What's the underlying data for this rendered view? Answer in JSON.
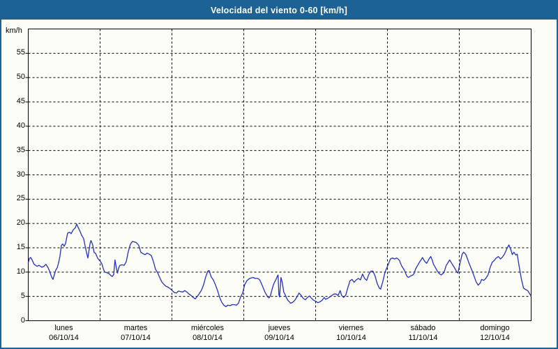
{
  "window": {
    "title": "Velocidad del viento 0-60 [km/h]"
  },
  "colors": {
    "frame_blue": "#1d6295",
    "titlebar_text": "#ffffff",
    "panel_background": "#fbfdf6",
    "plot_frame": "#000000",
    "gridline": "#000000",
    "series_line": "#2330c0",
    "label_text": "#000000"
  },
  "chart_data": {
    "type": "line",
    "title": "Velocidad del viento 0-60 [km/h]",
    "ylabel": "km/h",
    "xlabel": "",
    "ylim": [
      0,
      60
    ],
    "xlim": [
      0,
      7
    ],
    "yticks": [
      0,
      5,
      10,
      15,
      20,
      25,
      30,
      35,
      40,
      45,
      50,
      55
    ],
    "grid": "dashed-both-axes",
    "legend": "none",
    "days": [
      {
        "name": "lunes",
        "date": "06/10/14"
      },
      {
        "name": "martes",
        "date": "07/10/14"
      },
      {
        "name": "miércoles",
        "date": "08/10/14"
      },
      {
        "name": "jueves",
        "date": "09/10/14"
      },
      {
        "name": "viernes",
        "date": "10/10/14"
      },
      {
        "name": "sábado",
        "date": "11/10/14"
      },
      {
        "name": "domingo",
        "date": "12/10/14"
      }
    ],
    "series": [
      {
        "name": "wind-speed-kmh",
        "x_unit": "days-since-monday-06/10/14",
        "points": [
          [
            0,
            11.9
          ],
          [
            0.015,
            12.8
          ],
          [
            0.034,
            13
          ],
          [
            0.053,
            12.5
          ],
          [
            0.082,
            11.6
          ],
          [
            0.121,
            11.2
          ],
          [
            0.15,
            11.4
          ],
          [
            0.189,
            11
          ],
          [
            0.218,
            11.2
          ],
          [
            0.247,
            11.6
          ],
          [
            0.277,
            10.9
          ],
          [
            0.296,
            10.2
          ],
          [
            0.325,
            9
          ],
          [
            0.344,
            8.5
          ],
          [
            0.364,
            9.5
          ],
          [
            0.383,
            10.4
          ],
          [
            0.403,
            10.9
          ],
          [
            0.422,
            11.9
          ],
          [
            0.441,
            13.2
          ],
          [
            0.461,
            15.5
          ],
          [
            0.48,
            15.8
          ],
          [
            0.5,
            15.3
          ],
          [
            0.519,
            15.9
          ],
          [
            0.548,
            18
          ],
          [
            0.577,
            18.2
          ],
          [
            0.597,
            17.9
          ],
          [
            0.626,
            18.7
          ],
          [
            0.655,
            19.1
          ],
          [
            0.674,
            19.9
          ],
          [
            0.694,
            19.2
          ],
          [
            0.723,
            18.3
          ],
          [
            0.742,
            17.6
          ],
          [
            0.771,
            16.9
          ],
          [
            0.791,
            15.4
          ],
          [
            0.81,
            14.1
          ],
          [
            0.83,
            12.9
          ],
          [
            0.859,
            15.8
          ],
          [
            0.873,
            16.5
          ],
          [
            0.897,
            15.6
          ],
          [
            0.917,
            14
          ],
          [
            0.936,
            13.9
          ],
          [
            0.965,
            12.9
          ],
          [
            0.985,
            12.5
          ],
          [
            1.004,
            12.2
          ],
          [
            1.024,
            11.7
          ],
          [
            1.043,
            10.8
          ],
          [
            1.062,
            10
          ],
          [
            1.091,
            9.9
          ],
          [
            1.121,
            9.7
          ],
          [
            1.15,
            9.3
          ],
          [
            1.169,
            9.1
          ],
          [
            1.189,
            9.5
          ],
          [
            1.208,
            12.5
          ],
          [
            1.227,
            10.8
          ],
          [
            1.242,
            9.8
          ],
          [
            1.257,
            10.8
          ],
          [
            1.276,
            11.4
          ],
          [
            1.305,
            11.5
          ],
          [
            1.334,
            11.4
          ],
          [
            1.363,
            12.1
          ],
          [
            1.392,
            14.2
          ],
          [
            1.421,
            15.7
          ],
          [
            1.45,
            16.3
          ],
          [
            1.48,
            16.2
          ],
          [
            1.509,
            16
          ],
          [
            1.538,
            15.5
          ],
          [
            1.567,
            14.1
          ],
          [
            1.596,
            13.8
          ],
          [
            1.625,
            13.6
          ],
          [
            1.654,
            13.9
          ],
          [
            1.683,
            13.7
          ],
          [
            1.713,
            13.4
          ],
          [
            1.742,
            12.2
          ],
          [
            1.771,
            10.6
          ],
          [
            1.8,
            9.9
          ],
          [
            1.829,
            8.9
          ],
          [
            1.858,
            8
          ],
          [
            1.887,
            7.5
          ],
          [
            1.916,
            7.1
          ],
          [
            1.946,
            6.9
          ],
          [
            1.975,
            6.6
          ],
          [
            2.004,
            6.2
          ],
          [
            2.033,
            5.8
          ],
          [
            2.062,
            5.7
          ],
          [
            2.091,
            6.1
          ],
          [
            2.12,
            6
          ],
          [
            2.149,
            5.9
          ],
          [
            2.179,
            6.2
          ],
          [
            2.208,
            5.9
          ],
          [
            2.237,
            5.5
          ],
          [
            2.266,
            5.2
          ],
          [
            2.295,
            4.8
          ],
          [
            2.324,
            4.5
          ],
          [
            2.353,
            5
          ],
          [
            2.382,
            5.6
          ],
          [
            2.412,
            6.3
          ],
          [
            2.441,
            7.4
          ],
          [
            2.47,
            9
          ],
          [
            2.499,
            10.2
          ],
          [
            2.518,
            10.3
          ],
          [
            2.547,
            9
          ],
          [
            2.576,
            8.4
          ],
          [
            2.605,
            7.4
          ],
          [
            2.635,
            6.2
          ],
          [
            2.664,
            4.8
          ],
          [
            2.693,
            3.8
          ],
          [
            2.722,
            3.2
          ],
          [
            2.751,
            2.9
          ],
          [
            2.78,
            3.2
          ],
          [
            2.809,
            3.1
          ],
          [
            2.838,
            3.3
          ],
          [
            2.867,
            3.3
          ],
          [
            2.897,
            3.2
          ],
          [
            2.926,
            3.6
          ],
          [
            2.955,
            4.9
          ],
          [
            2.984,
            5.7
          ],
          [
            3.013,
            7.4
          ],
          [
            3.042,
            8.2
          ],
          [
            3.071,
            8.6
          ],
          [
            3.1,
            8.8
          ],
          [
            3.129,
            8.9
          ],
          [
            3.159,
            8.7
          ],
          [
            3.188,
            8.7
          ],
          [
            3.207,
            8.6
          ],
          [
            3.226,
            8.3
          ],
          [
            3.255,
            7.3
          ],
          [
            3.275,
            6.6
          ],
          [
            3.294,
            5.9
          ],
          [
            3.314,
            5.4
          ],
          [
            3.333,
            4.9
          ],
          [
            3.352,
            4.7
          ],
          [
            3.372,
            5.2
          ],
          [
            3.391,
            6.3
          ],
          [
            3.411,
            7.3
          ],
          [
            3.43,
            8
          ],
          [
            3.449,
            8.5
          ],
          [
            3.469,
            9.2
          ],
          [
            3.478,
            9.4
          ],
          [
            3.488,
            5.4
          ],
          [
            3.498,
            4.9
          ],
          [
            3.517,
            8.9
          ],
          [
            3.537,
            7.8
          ],
          [
            3.556,
            5.9
          ],
          [
            3.575,
            5.4
          ],
          [
            3.595,
            4.7
          ],
          [
            3.614,
            4.2
          ],
          [
            3.634,
            3.9
          ],
          [
            3.653,
            3.6
          ],
          [
            3.682,
            3.8
          ],
          [
            3.711,
            4.2
          ],
          [
            3.74,
            4.9
          ],
          [
            3.769,
            5.7
          ],
          [
            3.799,
            5.2
          ],
          [
            3.828,
            4.6
          ],
          [
            3.857,
            4.3
          ],
          [
            3.886,
            4.8
          ],
          [
            3.915,
            5.1
          ],
          [
            3.944,
            4.6
          ],
          [
            3.973,
            4.2
          ],
          [
            4.002,
            4
          ],
          [
            4.032,
            3.7
          ],
          [
            4.061,
            3.9
          ],
          [
            4.09,
            4.2
          ],
          [
            4.119,
            4.8
          ],
          [
            4.138,
            4.4
          ],
          [
            4.167,
            4.6
          ],
          [
            4.197,
            4.9
          ],
          [
            4.226,
            5.2
          ],
          [
            4.255,
            5.5
          ],
          [
            4.284,
            5.5
          ],
          [
            4.313,
            5.2
          ],
          [
            4.342,
            6.2
          ],
          [
            4.362,
            5.2
          ],
          [
            4.391,
            4.8
          ],
          [
            4.42,
            5.3
          ],
          [
            4.449,
            6.8
          ],
          [
            4.478,
            8.2
          ],
          [
            4.507,
            8.5
          ],
          [
            4.536,
            7.9
          ],
          [
            4.565,
            8.4
          ],
          [
            4.594,
            8.7
          ],
          [
            4.624,
            8.4
          ],
          [
            4.653,
            9.6
          ],
          [
            4.682,
            8.7
          ],
          [
            4.711,
            8.3
          ],
          [
            4.74,
            9.5
          ],
          [
            4.769,
            10.2
          ],
          [
            4.798,
            10.2
          ],
          [
            4.827,
            9.2
          ],
          [
            4.856,
            7.7
          ],
          [
            4.886,
            6.7
          ],
          [
            4.905,
            6.5
          ],
          [
            4.934,
            8
          ],
          [
            4.963,
            9.8
          ],
          [
            4.983,
            10.6
          ],
          [
            5.012,
            11.6
          ],
          [
            5.041,
            12.7
          ],
          [
            5.07,
            12.9
          ],
          [
            5.099,
            12.7
          ],
          [
            5.128,
            12.9
          ],
          [
            5.147,
            12.7
          ],
          [
            5.167,
            12.4
          ],
          [
            5.196,
            11.3
          ],
          [
            5.215,
            10.9
          ],
          [
            5.235,
            10.4
          ],
          [
            5.254,
            9.7
          ],
          [
            5.273,
            9.1
          ],
          [
            5.293,
            8.9
          ],
          [
            5.322,
            9.2
          ],
          [
            5.351,
            9.4
          ],
          [
            5.37,
            9.7
          ],
          [
            5.39,
            10.6
          ],
          [
            5.409,
            11.1
          ],
          [
            5.428,
            11.6
          ],
          [
            5.448,
            12.1
          ],
          [
            5.467,
            12.5
          ],
          [
            5.487,
            13
          ],
          [
            5.506,
            12.5
          ],
          [
            5.525,
            12.1
          ],
          [
            5.545,
            11.8
          ],
          [
            5.564,
            12.3
          ],
          [
            5.583,
            12.8
          ],
          [
            5.603,
            13.2
          ],
          [
            5.622,
            12.5
          ],
          [
            5.641,
            11.6
          ],
          [
            5.661,
            11.1
          ],
          [
            5.69,
            10.3
          ],
          [
            5.719,
            9.7
          ],
          [
            5.748,
            9.4
          ],
          [
            5.787,
            9.9
          ],
          [
            5.816,
            11.3
          ],
          [
            5.845,
            12
          ],
          [
            5.865,
            12.5
          ],
          [
            5.894,
            11.8
          ],
          [
            5.933,
            10.9
          ],
          [
            5.962,
            10.1
          ],
          [
            5.981,
            9.8
          ],
          [
            6.01,
            11.8
          ],
          [
            6.04,
            13.7
          ],
          [
            6.059,
            14.1
          ],
          [
            6.088,
            13.7
          ],
          [
            6.107,
            13
          ],
          [
            6.136,
            11.8
          ],
          [
            6.175,
            10.4
          ],
          [
            6.205,
            9.2
          ],
          [
            6.234,
            8
          ],
          [
            6.263,
            7.3
          ],
          [
            6.292,
            7.8
          ],
          [
            6.311,
            8.5
          ],
          [
            6.34,
            8.3
          ],
          [
            6.369,
            8.7
          ],
          [
            6.399,
            9.4
          ],
          [
            6.428,
            10.9
          ],
          [
            6.457,
            12
          ],
          [
            6.486,
            12.4
          ],
          [
            6.515,
            12.9
          ],
          [
            6.544,
            13.2
          ],
          [
            6.573,
            12.7
          ],
          [
            6.602,
            13.1
          ],
          [
            6.632,
            13.8
          ],
          [
            6.661,
            14.8
          ],
          [
            6.69,
            15.6
          ],
          [
            6.719,
            14.5
          ],
          [
            6.738,
            13.6
          ],
          [
            6.758,
            14.1
          ],
          [
            6.787,
            13.5
          ],
          [
            6.806,
            13.7
          ],
          [
            6.835,
            11
          ],
          [
            6.865,
            8.5
          ],
          [
            6.894,
            6.7
          ],
          [
            6.923,
            6.4
          ],
          [
            6.952,
            6.2
          ],
          [
            6.981,
            5.5
          ],
          [
            7,
            5.1
          ]
        ]
      }
    ]
  }
}
